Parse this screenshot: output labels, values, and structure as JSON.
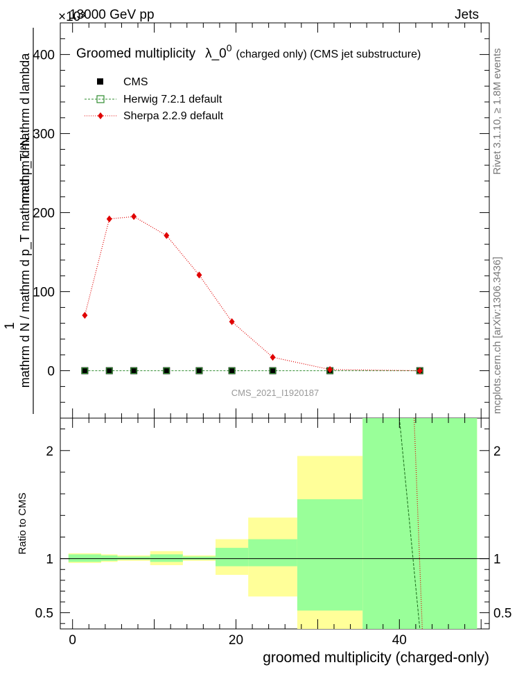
{
  "header": {
    "energy": "13000 GeV pp",
    "exponent": "×10³",
    "category": "Jets"
  },
  "side": {
    "rivet": "Rivet 3.1.10, ≥ 1.8M events",
    "mcplots": "mcplots.cern.ch [arXiv:1306.3436]"
  },
  "chart_data": {
    "type": "line",
    "title": "Groomed multiplicity",
    "title_symbol": "λ_0",
    "title_symbol_sup": "0",
    "title_note": "(charged only) (CMS jet substructure)",
    "ylabel_top": "1",
    "ylabel_num": "mathrm d²N",
    "ylabel_den": "mathrm d N / mathrm d p_T mathrm d p_T mathrm d lambda",
    "xlabel": "groomed multiplicity (charged-only)",
    "watermark": "CMS_2021_I1920187",
    "xlim": [
      -1.5,
      51
    ],
    "ylim_main": [
      -60,
      440
    ],
    "y_scale_factor": 1000,
    "x_ticks": [
      0,
      20,
      40
    ],
    "x_tick_labels": [
      "0",
      "20",
      "40"
    ],
    "y_ticks_main": [
      0,
      100,
      200,
      300,
      400
    ],
    "y_tick_labels_main": [
      "0",
      "100",
      "200",
      "300",
      "400"
    ],
    "x": [
      1.5,
      4.5,
      7.5,
      11.5,
      15.5,
      19.5,
      24.5,
      31.5,
      42.5
    ],
    "series": [
      {
        "name": "CMS",
        "color": "#000000",
        "marker": "filled-square",
        "values": [
          0,
          0,
          0,
          0,
          0,
          0,
          0,
          0,
          0
        ]
      },
      {
        "name": "Herwig 7.2.1 default",
        "color": "#2e8b2e",
        "marker": "open-square",
        "values": [
          0,
          0,
          0,
          0,
          0,
          0,
          0,
          0,
          0
        ]
      },
      {
        "name": "Sherpa 2.2.9 default",
        "color": "#e00000",
        "marker": "diamond",
        "values": [
          70,
          192,
          195,
          171,
          121,
          62,
          17,
          1.5,
          0
        ]
      }
    ],
    "ratio": {
      "ylabel": "Ratio to CMS",
      "ylim": [
        0.35,
        2.3
      ],
      "y_ticks": [
        0.5,
        1,
        2
      ],
      "y_tick_labels": [
        "0.5",
        "1",
        "2"
      ],
      "bins": [
        {
          "lo": -0.5,
          "hi": 3.5,
          "inner": [
            0.97,
            1.04
          ],
          "outer": [
            0.96,
            1.05
          ]
        },
        {
          "lo": 3.5,
          "hi": 5.5,
          "inner": [
            0.98,
            1.03
          ],
          "outer": [
            0.97,
            1.04
          ]
        },
        {
          "lo": 5.5,
          "hi": 9.5,
          "inner": [
            0.99,
            1.02
          ],
          "outer": [
            0.98,
            1.03
          ]
        },
        {
          "lo": 9.5,
          "hi": 13.5,
          "inner": [
            0.97,
            1.04
          ],
          "outer": [
            0.94,
            1.07
          ]
        },
        {
          "lo": 13.5,
          "hi": 17.5,
          "inner": [
            0.99,
            1.02
          ],
          "outer": [
            0.98,
            1.03
          ]
        },
        {
          "lo": 17.5,
          "hi": 21.5,
          "inner": [
            0.93,
            1.1
          ],
          "outer": [
            0.85,
            1.18
          ]
        },
        {
          "lo": 21.5,
          "hi": 27.5,
          "inner": [
            0.93,
            1.18
          ],
          "outer": [
            0.65,
            1.38
          ]
        },
        {
          "lo": 27.5,
          "hi": 35.5,
          "inner": [
            0.52,
            1.55
          ],
          "outer": [
            0.35,
            1.95
          ]
        },
        {
          "lo": 35.5,
          "hi": 49.5,
          "inner": [
            0.35,
            2.3
          ],
          "outer": [
            0.35,
            2.3
          ]
        }
      ],
      "herwig_line": [
        [
          40,
          2.3
        ],
        [
          42.5,
          0.35
        ]
      ],
      "sherpa_line": [
        [
          41.8,
          2.3
        ],
        [
          42.8,
          0.35
        ]
      ]
    }
  }
}
